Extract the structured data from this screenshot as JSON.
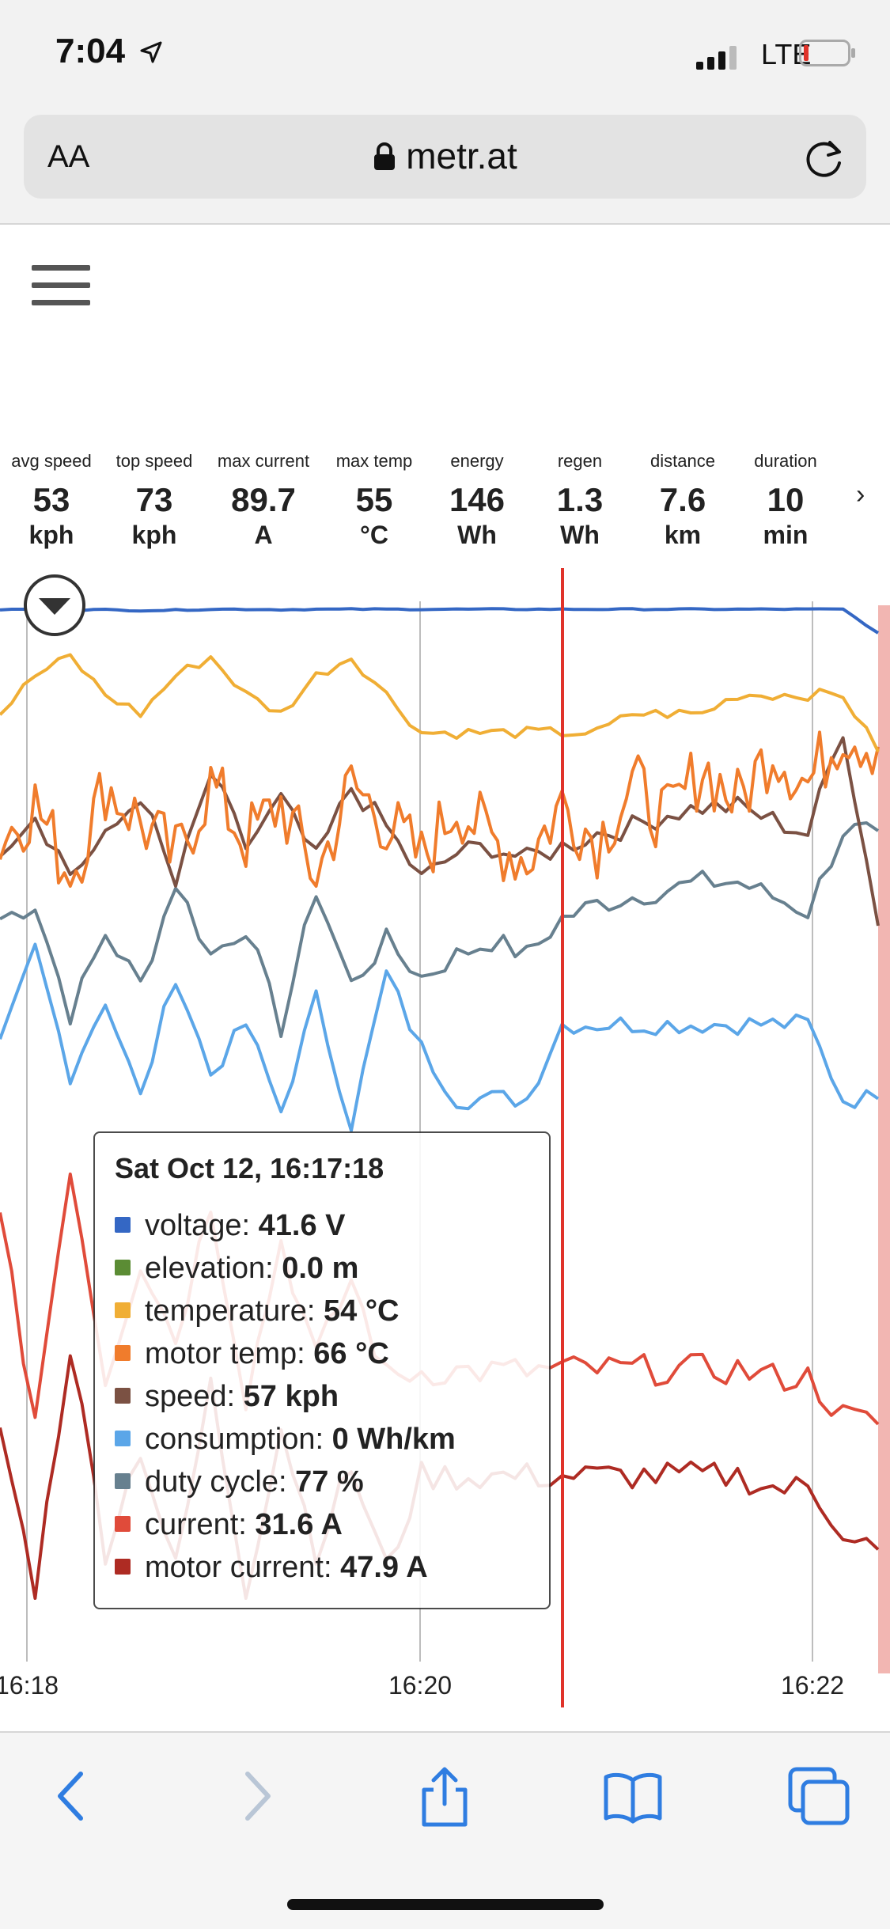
{
  "status_bar": {
    "time": "7:04",
    "carrier": "LTE"
  },
  "browser": {
    "text_size_label": "AA",
    "url": "metr.at"
  },
  "stats": [
    {
      "label": "avg speed",
      "value": "53",
      "unit": "kph"
    },
    {
      "label": "top speed",
      "value": "73",
      "unit": "kph"
    },
    {
      "label": "max current",
      "value": "89.7",
      "unit": "A"
    },
    {
      "label": "max temp",
      "value": "55",
      "unit": "°C"
    },
    {
      "label": "energy",
      "value": "146",
      "unit": "Wh"
    },
    {
      "label": "regen",
      "value": "1.3",
      "unit": "Wh"
    },
    {
      "label": "distance",
      "value": "7.6",
      "unit": "km"
    },
    {
      "label": "duration",
      "value": "10",
      "unit": "min"
    }
  ],
  "stats_next": "›",
  "colors": {
    "voltage": "#3467c4",
    "elevation": "#5b8c34",
    "temperature": "#f0ae35",
    "motor_temp": "#f07c2c",
    "speed": "#7b5143",
    "consumption": "#5ba6e8",
    "duty_cycle": "#67808f",
    "current": "#e04b3a",
    "motor_current": "#ae2b23",
    "cursor": "#e0332a"
  },
  "tooltip": {
    "title": "Sat Oct 12, 16:17:18",
    "rows": [
      {
        "label": "voltage:",
        "value": "41.6 V"
      },
      {
        "label": "elevation:",
        "value": "0.0 m"
      },
      {
        "label": "temperature:",
        "value": "54 °C"
      },
      {
        "label": "motor temp:",
        "value": "66 °C"
      },
      {
        "label": "speed:",
        "value": "57 kph"
      },
      {
        "label": "consumption:",
        "value": "0 Wh/km"
      },
      {
        "label": "duty cycle:",
        "value": "77 %"
      },
      {
        "label": "current:",
        "value": "31.6 A"
      },
      {
        "label": "motor current:",
        "value": "47.9 A"
      }
    ]
  },
  "chart_data": {
    "type": "line",
    "x_ticks": [
      "16:18",
      "16:20",
      "16:22"
    ],
    "series": [
      {
        "name": "voltage",
        "unit": "V",
        "values": [
          41.5,
          41.6,
          41.4,
          41.5,
          41.3,
          41.4,
          41.6,
          41.6,
          41.5,
          41.6,
          41.6,
          41.6,
          41.6,
          41.6,
          41.6,
          41.6,
          41.6,
          41.6,
          41.6,
          41.6,
          41.6,
          41.6,
          41.6,
          41.6,
          41.6,
          36.0
        ]
      },
      {
        "name": "temperature",
        "unit": "°C",
        "values": [
          52,
          54,
          55,
          53,
          52,
          54,
          55,
          53,
          52,
          54,
          55,
          53,
          51,
          51,
          51,
          51,
          51,
          51,
          52,
          52,
          52,
          53,
          53,
          53,
          53,
          50
        ]
      },
      {
        "name": "motor temp",
        "unit": "°C",
        "values": [
          64,
          66,
          62,
          67,
          65,
          63,
          67,
          64,
          66,
          62,
          67,
          65,
          63,
          66,
          64,
          63,
          66,
          64,
          67,
          65,
          68,
          66,
          69,
          67,
          70,
          69
        ]
      },
      {
        "name": "speed",
        "unit": "kph",
        "values": [
          52,
          57,
          48,
          53,
          60,
          46,
          63,
          52,
          59,
          50,
          61,
          55,
          47,
          51,
          52,
          50,
          52,
          54,
          55,
          57,
          58,
          58,
          56,
          54,
          70,
          40
        ]
      },
      {
        "name": "consumption",
        "unit": "Wh/km",
        "values": [
          14,
          22,
          12,
          18,
          10,
          20,
          12,
          16,
          9,
          18,
          8,
          20,
          14,
          10,
          10,
          10,
          16,
          16,
          16,
          16,
          16,
          16,
          16,
          16,
          10,
          10
        ]
      },
      {
        "name": "duty cycle",
        "unit": "%",
        "values": [
          75,
          77,
          62,
          73,
          66,
          80,
          70,
          74,
          60,
          79,
          66,
          72,
          67,
          70,
          72,
          70,
          75,
          77,
          78,
          79,
          80,
          80,
          78,
          76,
          87,
          87
        ]
      },
      {
        "name": "current",
        "unit": "A",
        "values": [
          70,
          20,
          85,
          30,
          60,
          40,
          75,
          25,
          65,
          35,
          55,
          30,
          31.6,
          31.6,
          31.6,
          31.6,
          32,
          32,
          32,
          32,
          32,
          32,
          30,
          30,
          20,
          18
        ]
      },
      {
        "name": "motor current",
        "unit": "A",
        "values": [
          60,
          20,
          80,
          30,
          55,
          25,
          70,
          20,
          60,
          30,
          50,
          25,
          47.9,
          47.9,
          47.9,
          47.9,
          48,
          48,
          48,
          48,
          48,
          48,
          45,
          45,
          35,
          30
        ]
      }
    ],
    "cursor_time": "16:17:18"
  }
}
